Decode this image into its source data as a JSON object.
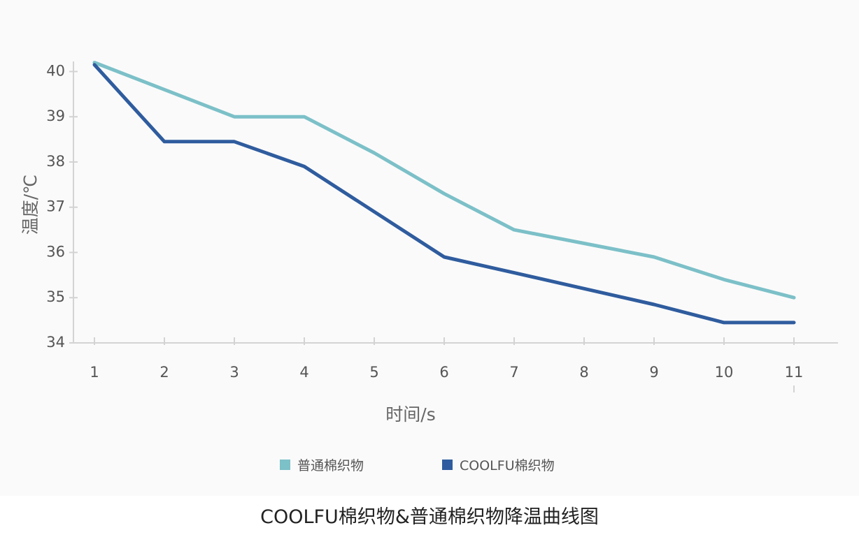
{
  "caption": "COOLFU棉织物&普通棉织物降温曲线图",
  "chart_data": {
    "type": "line",
    "title": "",
    "xlabel": "时间/s",
    "ylabel": "温度/℃",
    "x": [
      1,
      2,
      3,
      4,
      5,
      6,
      7,
      8,
      9,
      10,
      11
    ],
    "x_tick_labels": [
      "1",
      "2",
      "3",
      "4",
      "5",
      "6",
      "7",
      "8",
      "9",
      "10",
      "11"
    ],
    "y_tick_values": [
      34,
      35,
      36,
      37,
      38,
      39,
      40
    ],
    "y_tick_labels": [
      "34",
      "35",
      "36",
      "37",
      "38",
      "39",
      "40"
    ],
    "ylim": [
      34,
      40.3
    ],
    "xlim": [
      1,
      11
    ],
    "grid": false,
    "legend_position": "bottom-center",
    "series": [
      {
        "name": "普通棉织物",
        "color": "#7cc0c8",
        "values": [
          40.2,
          39.6,
          39.0,
          39.0,
          38.2,
          37.3,
          36.5,
          36.2,
          35.9,
          35.4,
          35.0
        ]
      },
      {
        "name": "COOLFU棉织物",
        "color": "#2f5c9e",
        "values": [
          40.15,
          38.45,
          38.45,
          37.9,
          36.9,
          35.9,
          35.55,
          35.2,
          34.85,
          34.45,
          34.45
        ]
      }
    ]
  }
}
